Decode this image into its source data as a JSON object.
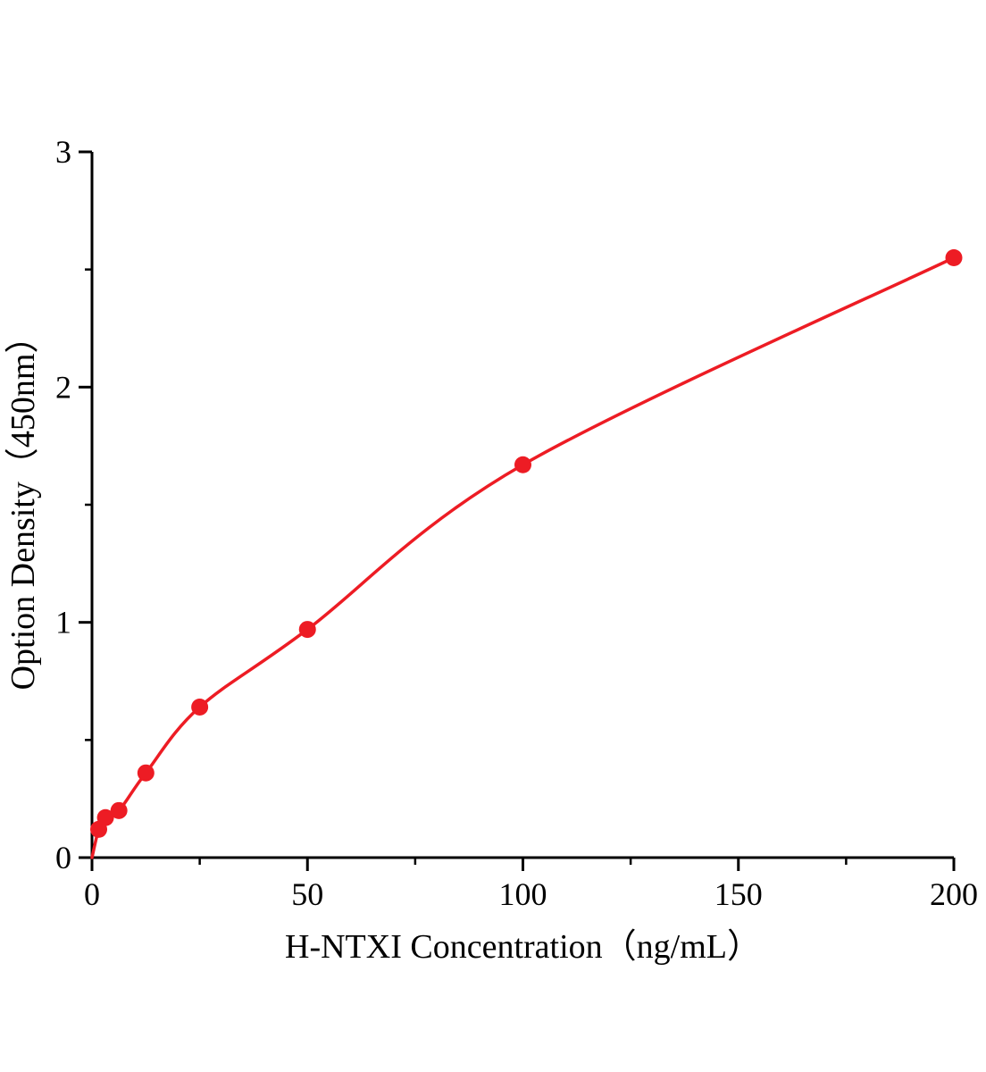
{
  "figure": {
    "background": "#ffffff"
  },
  "chart_data": {
    "type": "scatter",
    "title": "",
    "xlabel": "H-NTXI Concentration（ng/mL）",
    "ylabel": "Option Density（450nm）",
    "x": [
      1.56,
      3.13,
      6.25,
      12.5,
      25,
      50,
      100,
      200
    ],
    "y": [
      0.12,
      0.17,
      0.2,
      0.36,
      0.64,
      0.97,
      1.67,
      2.55
    ],
    "fit_curve_through_origin": true,
    "xlim": [
      0,
      200
    ],
    "ylim": [
      0,
      3
    ],
    "x_ticks": [
      0,
      50,
      100,
      150,
      200
    ],
    "y_ticks": [
      0,
      1,
      2,
      3
    ],
    "x_minor_step": 25,
    "y_minor_step": 0.5,
    "line_color": "#ed1c24",
    "point_color": "#ed1c24",
    "axis_color": "#000000",
    "grid": false,
    "legend": "none"
  }
}
